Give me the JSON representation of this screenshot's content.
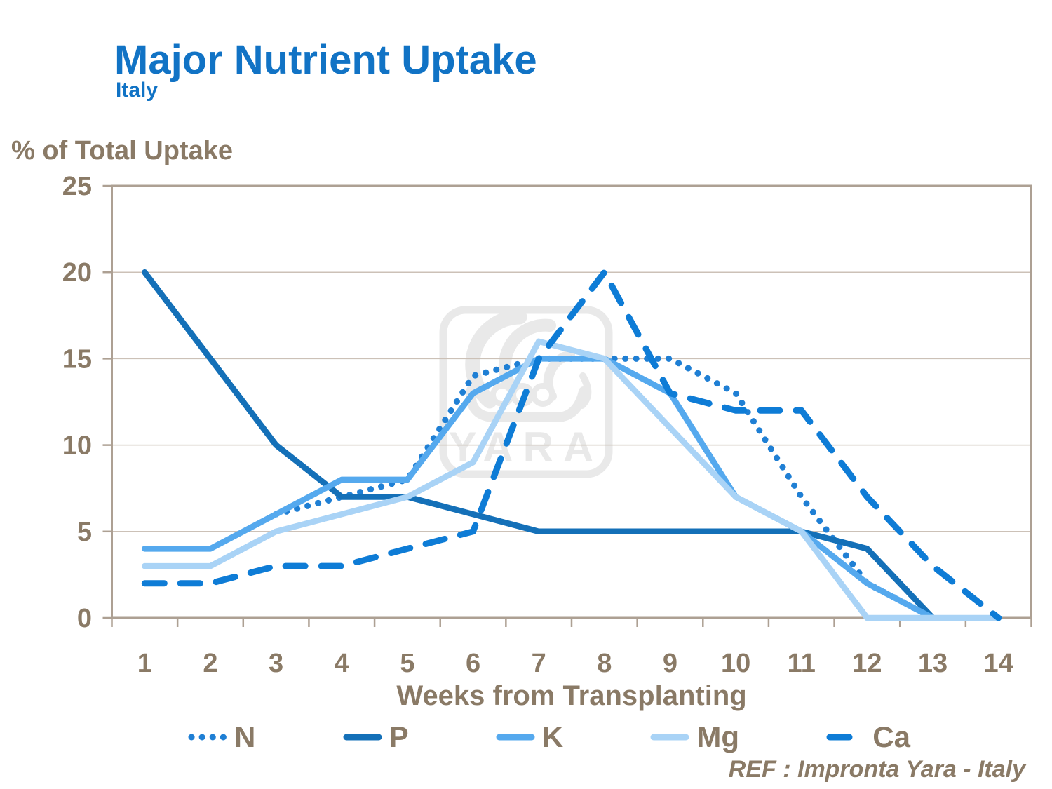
{
  "title": "Major Nutrient Uptake",
  "subtitle": "Italy",
  "y_axis_title": "% of Total Uptake",
  "x_axis_title": "Weeks from Transplanting",
  "ref_text": "REF : Impronta Yara - Italy",
  "watermark_text": "YARA",
  "colors": {
    "title_blue": "#1173C5",
    "axis_text": "#8A7A66",
    "gridline": "#CCC1B7",
    "frame": "#ADA093",
    "watermark": "#E9E9E9",
    "background": "#FFFFFF"
  },
  "chart_data": {
    "type": "line",
    "x": [
      1,
      2,
      3,
      4,
      5,
      6,
      7,
      8,
      9,
      10,
      11,
      12,
      13,
      14
    ],
    "x_label": "Weeks from Transplanting",
    "y_label": "% of Total Uptake",
    "y_ticks": [
      0,
      5,
      10,
      15,
      20,
      25
    ],
    "ylim": [
      0,
      25
    ],
    "grid": "horizontal",
    "legend_position": "bottom",
    "series": [
      {
        "name": "N",
        "style": "dotted",
        "color": "#1F7FD4",
        "values": [
          null,
          null,
          6,
          7,
          8,
          14,
          15,
          15,
          15,
          13,
          7,
          2,
          0,
          null
        ]
      },
      {
        "name": "P",
        "style": "solid",
        "color": "#1470B8",
        "values": [
          20,
          15,
          10,
          7,
          7,
          6,
          5,
          5,
          5,
          5,
          5,
          4,
          0,
          null
        ]
      },
      {
        "name": "K",
        "style": "solid",
        "color": "#55A9EE",
        "values": [
          4,
          4,
          6,
          8,
          8,
          13,
          15,
          15,
          13,
          7,
          5,
          2,
          0,
          null
        ]
      },
      {
        "name": "Mg",
        "style": "solid",
        "color": "#A9D3F6",
        "values": [
          3,
          3,
          5,
          6,
          7,
          9,
          16,
          15,
          11,
          7,
          5,
          0,
          0,
          0
        ]
      },
      {
        "name": "Ca",
        "style": "dashed",
        "color": "#0E7CD6",
        "values": [
          2,
          2,
          3,
          3,
          4,
          5,
          15,
          20,
          13,
          12,
          12,
          7,
          3,
          0
        ]
      }
    ]
  }
}
